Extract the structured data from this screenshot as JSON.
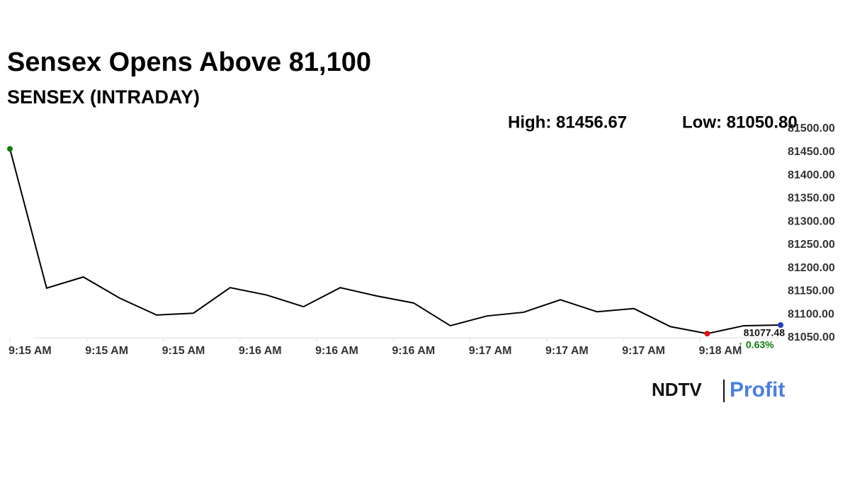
{
  "chart_data": {
    "type": "line",
    "title": "Sensex Opens Above 81,100",
    "subtitle": "SENSEX (INTRADAY)",
    "high_label": "High: 81456.67",
    "low_label": "Low: 81050.80",
    "change_label": "↑ 0.63%",
    "color": "#000000",
    "start_color": "#0a7d0a",
    "low_color": "#e01010",
    "end_color": "#1f3fc8",
    "change_color": "#0a7d0a",
    "x": [
      0,
      1,
      2,
      3,
      4,
      5,
      6,
      7,
      8,
      9,
      10,
      11,
      12,
      13,
      14,
      15,
      16,
      17,
      18,
      19,
      20,
      21
    ],
    "values": [
      81457,
      81157,
      81181,
      81135,
      81099,
      81103,
      81158,
      81142,
      81117,
      81158,
      81140,
      81125,
      81076,
      81097,
      81105,
      81132,
      81106,
      81113,
      81074,
      81059,
      81076,
      81077.48
    ],
    "xlim": [
      0,
      21
    ],
    "xticks": [
      {
        "value": 0,
        "label": "9:15 AM"
      },
      {
        "value": 2.09,
        "label": "9:15 AM"
      },
      {
        "value": 4.18,
        "label": "9:15 AM"
      },
      {
        "value": 6.27,
        "label": "9:16 AM"
      },
      {
        "value": 8.36,
        "label": "9:16 AM"
      },
      {
        "value": 10.45,
        "label": "9:16 AM"
      },
      {
        "value": 12.54,
        "label": "9:17 AM"
      },
      {
        "value": 14.63,
        "label": "9:17 AM"
      },
      {
        "value": 16.72,
        "label": "9:17 AM"
      },
      {
        "value": 18.81,
        "label": "9:18 AM"
      }
    ],
    "ylim": [
      81050,
      81500
    ],
    "yticks": [
      {
        "value": 81050,
        "label": "81050.00"
      },
      {
        "value": 81100,
        "label": "81100.00"
      },
      {
        "value": 81150,
        "label": "81150.00"
      },
      {
        "value": 81200,
        "label": "81200.00"
      },
      {
        "value": 81250,
        "label": "81250.00"
      },
      {
        "value": 81300,
        "label": "81300.00"
      },
      {
        "value": 81350,
        "label": "81350.00"
      },
      {
        "value": 81400,
        "label": "81400.00"
      },
      {
        "value": 81450,
        "label": "81450.00"
      },
      {
        "value": 81500,
        "label": "81500.00"
      }
    ],
    "grid": false
  },
  "logo": {
    "brand": "NDTV",
    "product": "Profit"
  }
}
